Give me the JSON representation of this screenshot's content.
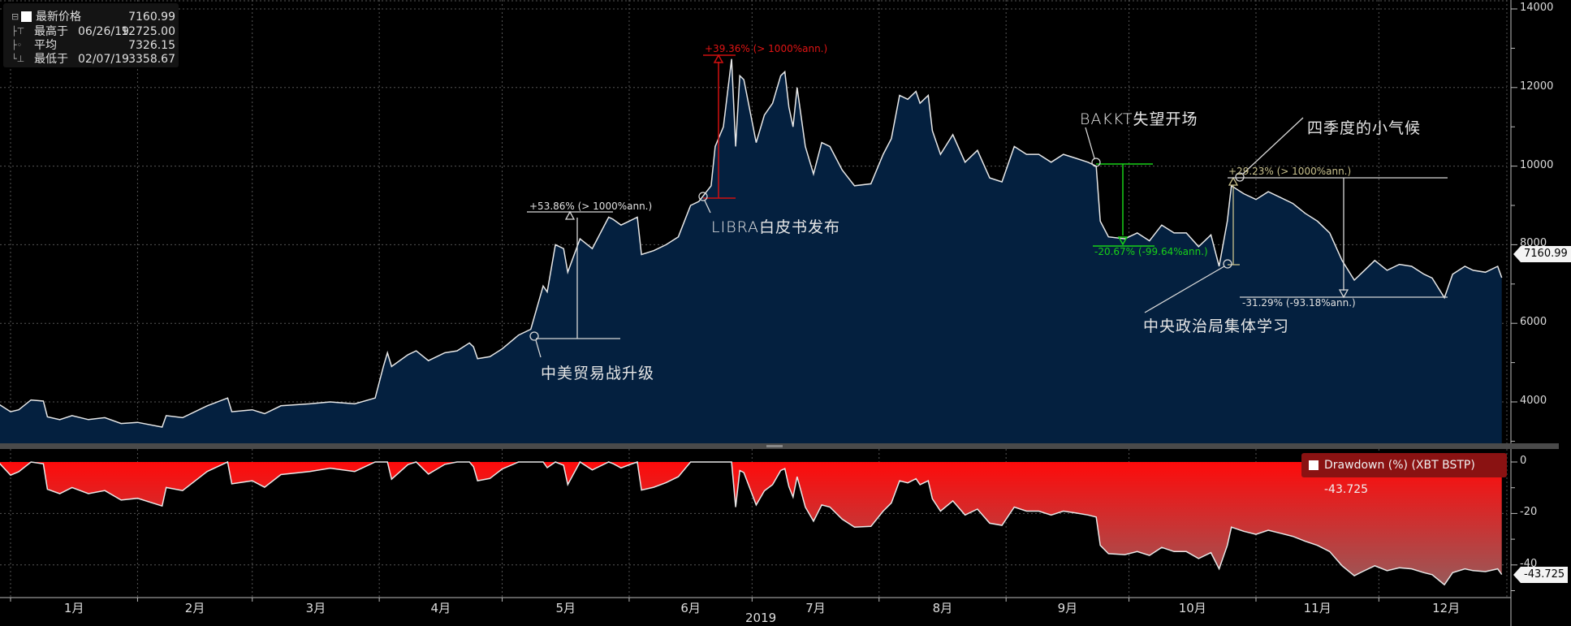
{
  "legend": {
    "rows": [
      {
        "label": "最新价格",
        "date": "",
        "value": "7160.99"
      },
      {
        "label": "最高于",
        "date": "06/26/19",
        "value": "12725.00"
      },
      {
        "label": "平均",
        "date": "",
        "value": "7326.15"
      },
      {
        "label": "最低于",
        "date": "02/07/19",
        "value": "3358.67"
      }
    ]
  },
  "drawdown_legend": "Drawdown (%) (XBT BSTP) -43.725",
  "last_price_tag": "7160.99",
  "last_drawdown_tag": "-43.725",
  "annotations": {
    "trade_war": "中美贸易战升级",
    "libra": "LIBRA白皮书发布",
    "bakkt": "BAKKT失望开场",
    "politburo": "中央政治局集体学习",
    "q4": "四季度的小气候",
    "m1": "+53.86% (> 1000%ann.)",
    "m2": "+39.36% (> 1000%ann.)",
    "m3": "-20.67% (-99.64%ann.)",
    "m4": "+29.23% (> 1000%ann.)",
    "m5": "-31.29% (-93.18%ann.)"
  },
  "colors": {
    "price_fill": "#04203f",
    "line": "#e8e8e8",
    "drawdown_top": "#ff0a0a",
    "drawdown_bottom": "#9a5858",
    "m2": "#d01010",
    "m3": "#18d018",
    "m4": "#c8c08c"
  },
  "chart_data": [
    {
      "type": "area",
      "ylim": [
        2874,
        14000
      ],
      "yticks": [
        "4000",
        "6000",
        "8000",
        "10000",
        "12000",
        "14000"
      ],
      "xticks": [
        "1月",
        "2月",
        "3月",
        "4月",
        "5月",
        "6月",
        "7月",
        "8月",
        "9月",
        "10月",
        "11月",
        "12月"
      ],
      "xlabel": "2019",
      "grid": true,
      "dates": [
        "2018-12-29",
        "2019-01-01",
        "2019-01-03",
        "2019-01-06",
        "2019-01-09",
        "2019-01-10",
        "2019-01-13",
        "2019-01-16",
        "2019-01-20",
        "2019-01-24",
        "2019-01-28",
        "2019-02-01",
        "2019-02-07",
        "2019-02-08",
        "2019-02-12",
        "2019-02-18",
        "2019-02-23",
        "2019-02-24",
        "2019-03-01",
        "2019-03-04",
        "2019-03-08",
        "2019-03-15",
        "2019-03-20",
        "2019-03-26",
        "2019-03-31",
        "2019-04-02",
        "2019-04-03",
        "2019-04-04",
        "2019-04-08",
        "2019-04-10",
        "2019-04-13",
        "2019-04-17",
        "2019-04-20",
        "2019-04-23",
        "2019-04-24",
        "2019-04-25",
        "2019-04-28",
        "2019-05-01",
        "2019-05-05",
        "2019-05-08",
        "2019-05-11",
        "2019-05-12",
        "2019-05-14",
        "2019-05-16",
        "2019-05-17",
        "2019-05-20",
        "2019-05-23",
        "2019-05-27",
        "2019-05-28",
        "2019-05-30",
        "2019-06-01",
        "2019-06-03",
        "2019-06-04",
        "2019-06-07",
        "2019-06-10",
        "2019-06-13",
        "2019-06-16",
        "2019-06-18",
        "2019-06-21",
        "2019-06-22",
        "2019-06-24",
        "2019-06-26",
        "2019-06-27",
        "2019-06-28",
        "2019-06-29",
        "2019-07-02",
        "2019-07-04",
        "2019-07-06",
        "2019-07-08",
        "2019-07-09",
        "2019-07-10",
        "2019-07-11",
        "2019-07-12",
        "2019-07-14",
        "2019-07-16",
        "2019-07-18",
        "2019-07-20",
        "2019-07-23",
        "2019-07-26",
        "2019-07-30",
        "2019-08-02",
        "2019-08-04",
        "2019-08-06",
        "2019-08-08",
        "2019-08-10",
        "2019-08-11",
        "2019-08-13",
        "2019-08-14",
        "2019-08-16",
        "2019-08-19",
        "2019-08-22",
        "2019-08-25",
        "2019-08-28",
        "2019-08-31",
        "2019-09-03",
        "2019-09-06",
        "2019-09-09",
        "2019-09-12",
        "2019-09-15",
        "2019-09-18",
        "2019-09-21",
        "2019-09-23",
        "2019-09-24",
        "2019-09-26",
        "2019-09-30",
        "2019-10-03",
        "2019-10-06",
        "2019-10-09",
        "2019-10-12",
        "2019-10-15",
        "2019-10-18",
        "2019-10-21",
        "2019-10-23",
        "2019-10-25",
        "2019-10-26",
        "2019-10-29",
        "2019-11-01",
        "2019-11-04",
        "2019-11-07",
        "2019-11-10",
        "2019-11-13",
        "2019-11-16",
        "2019-11-19",
        "2019-11-22",
        "2019-11-25",
        "2019-11-27",
        "2019-11-30",
        "2019-12-03",
        "2019-12-06",
        "2019-12-09",
        "2019-12-12",
        "2019-12-14",
        "2019-12-17",
        "2019-12-19",
        "2019-12-22",
        "2019-12-24",
        "2019-12-27",
        "2019-12-30",
        "2019-12-31"
      ],
      "values": [
        3950,
        3750,
        3800,
        4050,
        4020,
        3620,
        3550,
        3650,
        3550,
        3600,
        3450,
        3480,
        3359,
        3650,
        3600,
        3900,
        4100,
        3750,
        3800,
        3700,
        3900,
        3950,
        4000,
        3950,
        4100,
        4900,
        5250,
        4900,
        5200,
        5300,
        5050,
        5250,
        5300,
        5500,
        5400,
        5100,
        5150,
        5350,
        5700,
        5850,
        6950,
        6800,
        8000,
        7900,
        7300,
        8150,
        7900,
        8700,
        8650,
        8500,
        8600,
        8700,
        7750,
        7850,
        8000,
        8200,
        9000,
        9100,
        9500,
        10500,
        11000,
        12725,
        10500,
        12300,
        12200,
        10600,
        11300,
        11600,
        12300,
        12400,
        11500,
        11000,
        12000,
        10500,
        9800,
        10600,
        10500,
        9900,
        9500,
        9550,
        10300,
        10700,
        11800,
        11700,
        11900,
        11600,
        11800,
        10900,
        10300,
        10800,
        10100,
        10400,
        9700,
        9600,
        10500,
        10300,
        10300,
        10100,
        10300,
        10200,
        10100,
        10000,
        8600,
        8200,
        8150,
        8300,
        8100,
        8500,
        8300,
        8300,
        7950,
        8250,
        7450,
        8600,
        9500,
        9300,
        9150,
        9350,
        9200,
        9050,
        8800,
        8600,
        8300,
        7600,
        7100,
        7300,
        7600,
        7350,
        7500,
        7450,
        7250,
        7150,
        6650,
        7250,
        7450,
        7350,
        7300,
        7450,
        7161
      ]
    },
    {
      "type": "area",
      "name": "Drawdown (%) (XBT BSTP)",
      "ylim": [
        -52,
        0
      ],
      "yticks": [
        "0",
        "-20",
        "-40"
      ],
      "values": [
        0,
        -5.1,
        -3.8,
        0,
        -0.7,
        -10.6,
        -12.3,
        -9.9,
        -12.3,
        -11.1,
        -14.8,
        -14.1,
        -17.1,
        -9.9,
        -11.1,
        -3.7,
        0,
        -8.5,
        -7.3,
        -9.8,
        -4.9,
        -3.7,
        -2.4,
        -3.7,
        0,
        0,
        0,
        -6.7,
        -1.0,
        0,
        -4.7,
        -0.9,
        0,
        0,
        -1.8,
        -7.3,
        -6.4,
        -2.7,
        0,
        0,
        0,
        -2.2,
        0,
        -1.3,
        -8.8,
        0,
        -3.1,
        0,
        -0.6,
        -2.3,
        -1.1,
        0,
        -10.9,
        -9.8,
        -8.0,
        -5.7,
        0,
        0,
        0,
        0,
        0,
        0,
        -17.5,
        -3.3,
        -4.1,
        -16.7,
        -11.2,
        -8.8,
        -3.3,
        -2.6,
        -9.6,
        -13.6,
        -5.7,
        -17.5,
        -23.0,
        -16.7,
        -17.5,
        -22.2,
        -25.3,
        -25.0,
        -19.1,
        -15.9,
        -7.3,
        -8.1,
        -6.5,
        -8.8,
        -7.3,
        -14.3,
        -19.1,
        -15.1,
        -20.6,
        -18.3,
        -23.8,
        -24.6,
        -17.5,
        -19.1,
        -19.1,
        -20.6,
        -19.1,
        -19.8,
        -20.6,
        -21.4,
        -32.4,
        -35.6,
        -36.0,
        -34.8,
        -36.3,
        -33.2,
        -34.8,
        -34.8,
        -37.5,
        -35.2,
        -41.5,
        -32.4,
        -25.3,
        -26.9,
        -28.1,
        -26.5,
        -27.7,
        -28.9,
        -30.8,
        -32.4,
        -34.8,
        -40.3,
        -44.2,
        -42.6,
        -40.3,
        -42.2,
        -41.1,
        -41.5,
        -43.0,
        -43.8,
        -47.7,
        -43.0,
        -41.5,
        -42.2,
        -42.6,
        -41.5,
        -43.725
      ]
    }
  ]
}
